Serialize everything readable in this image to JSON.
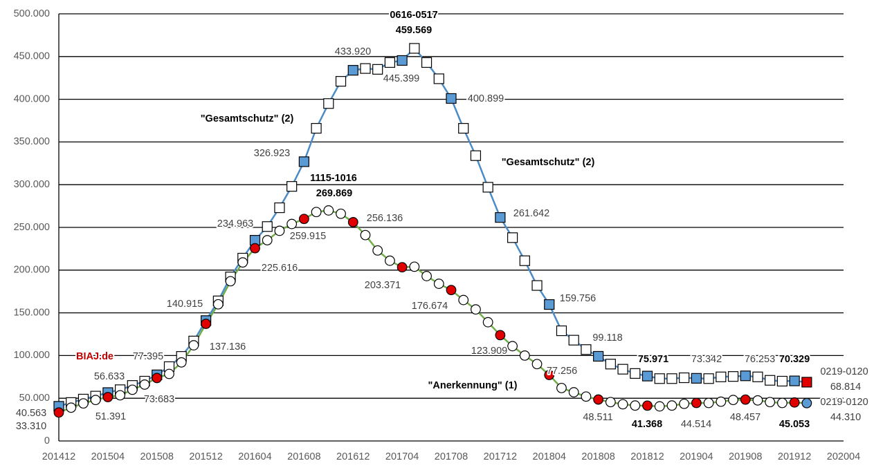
{
  "chart_data": {
    "type": "line",
    "categories": [
      "201412",
      null,
      null,
      null,
      "201504",
      null,
      null,
      null,
      "201508",
      null,
      null,
      null,
      "201512",
      null,
      null,
      null,
      "201604",
      null,
      null,
      null,
      "201608",
      null,
      null,
      null,
      "201612",
      null,
      null,
      null,
      "201704",
      null,
      null,
      null,
      "201708",
      null,
      null,
      null,
      "201712",
      null,
      null,
      null,
      "201804",
      null,
      null,
      null,
      "201808",
      null,
      null,
      null,
      "201812",
      null,
      null,
      null,
      "201904",
      null,
      null,
      null,
      "201908",
      null,
      null,
      null,
      "201912",
      null,
      null,
      null,
      "202004"
    ],
    "ylim": [
      0,
      500000
    ],
    "yticks": [
      0,
      {
        "value": 50000,
        "label": "50.000"
      },
      {
        "value": 100000,
        "label": "100.000"
      },
      {
        "value": 150000,
        "label": "150.000"
      },
      {
        "value": 200000,
        "label": "200.000"
      },
      {
        "value": 250000,
        "label": "250.000"
      },
      {
        "value": 300000,
        "label": "300.000"
      },
      {
        "value": 350000,
        "label": "350.000"
      },
      {
        "value": 400000,
        "label": "400.000"
      },
      {
        "value": 450000,
        "label": "450.000"
      },
      {
        "value": 500000,
        "label": "500.000"
      }
    ],
    "grid": true,
    "series": [
      {
        "name": "\"Gesamtschutz\" (2)",
        "color": "#4a8bc7",
        "marker": "square",
        "values": [
          40563,
          45000,
          49000,
          52500,
          56633,
          60000,
          65000,
          70000,
          77395,
          87000,
          99000,
          117000,
          140915,
          164000,
          192000,
          214000,
          234963,
          251000,
          273000,
          298000,
          326923,
          366000,
          395000,
          421000,
          433920,
          436000,
          435000,
          443000,
          445399,
          459569,
          443000,
          424000,
          400899,
          366000,
          334000,
          297000,
          261642,
          238000,
          211000,
          182000,
          159756,
          129000,
          118000,
          107000,
          99118,
          90000,
          84000,
          79000,
          75971,
          73000,
          73000,
          74000,
          73342,
          73000,
          75000,
          75500,
          76253,
          75000,
          71000,
          70000,
          70329,
          68814,
          null,
          null,
          null
        ],
        "value_labels": [
          "40.563",
          null,
          null,
          null,
          "56.633",
          null,
          null,
          null,
          "77.395",
          null,
          null,
          null,
          "140.915",
          null,
          null,
          null,
          "234.963",
          null,
          null,
          null,
          "326.923",
          null,
          null,
          null,
          "433.920",
          null,
          null,
          null,
          "445.399",
          "459.569",
          null,
          null,
          "400.899",
          null,
          null,
          null,
          "261.642",
          null,
          null,
          null,
          "159.756",
          null,
          null,
          null,
          "99.118",
          null,
          null,
          null,
          "75.971",
          null,
          null,
          null,
          "73.342",
          null,
          null,
          null,
          "76.253",
          null,
          null,
          null,
          "70.329",
          "68.814",
          null,
          null,
          null
        ],
        "point_colors": [
          "#5b9bd5",
          "#ffffff",
          "#ffffff",
          "#ffffff",
          "#5b9bd5",
          "#ffffff",
          "#ffffff",
          "#ffffff",
          "#5b9bd5",
          "#ffffff",
          "#ffffff",
          "#ffffff",
          "#5b9bd5",
          "#ffffff",
          "#ffffff",
          "#ffffff",
          "#5b9bd5",
          "#ffffff",
          "#ffffff",
          "#ffffff",
          "#5b9bd5",
          "#ffffff",
          "#ffffff",
          "#ffffff",
          "#5b9bd5",
          "#ffffff",
          "#ffffff",
          "#ffffff",
          "#5b9bd5",
          "#ffffff",
          "#ffffff",
          "#ffffff",
          "#5b9bd5",
          "#ffffff",
          "#ffffff",
          "#ffffff",
          "#5b9bd5",
          "#ffffff",
          "#ffffff",
          "#ffffff",
          "#5b9bd5",
          "#ffffff",
          "#ffffff",
          "#ffffff",
          "#5b9bd5",
          "#ffffff",
          "#ffffff",
          "#ffffff",
          "#5b9bd5",
          "#ffffff",
          "#ffffff",
          "#ffffff",
          "#5b9bd5",
          "#ffffff",
          "#ffffff",
          "#ffffff",
          "#5b9bd5",
          "#ffffff",
          "#ffffff",
          "#ffffff",
          "#5b9bd5",
          "#e00000",
          null,
          null,
          null
        ]
      },
      {
        "name": "\"Anerkennung\" (1)",
        "color": "#70ad47",
        "marker": "circle",
        "values": [
          33310,
          39000,
          44000,
          48000,
          51391,
          53500,
          60000,
          66000,
          73683,
          78500,
          92000,
          112000,
          137136,
          160000,
          187000,
          209000,
          225616,
          235000,
          246000,
          254000,
          259915,
          268000,
          269869,
          266000,
          256136,
          241000,
          223000,
          211000,
          203371,
          204000,
          193000,
          184000,
          176674,
          165000,
          154000,
          139000,
          123909,
          111000,
          100000,
          90000,
          77256,
          62000,
          57000,
          52000,
          48511,
          45500,
          43000,
          41500,
          41368,
          40500,
          41500,
          43500,
          44514,
          44500,
          46000,
          48000,
          48457,
          47500,
          45500,
          44500,
          45053,
          44310,
          null,
          null,
          null
        ],
        "value_labels": [
          "33.310",
          null,
          null,
          null,
          "51.391",
          null,
          null,
          null,
          "73.683",
          null,
          null,
          null,
          "137.136",
          null,
          null,
          null,
          "225.616",
          null,
          null,
          null,
          "259.915",
          null,
          "269.869",
          null,
          "256.136",
          null,
          null,
          null,
          "203.371",
          null,
          null,
          null,
          "176.674",
          null,
          null,
          null,
          "123.909",
          null,
          null,
          null,
          "77.256",
          null,
          null,
          null,
          "48.511",
          null,
          null,
          null,
          "41.368",
          null,
          null,
          null,
          "44.514",
          null,
          null,
          null,
          "48.457",
          null,
          null,
          null,
          "45.053",
          "44.310",
          null,
          null,
          null
        ],
        "point_colors": [
          "#e00000",
          "#ffffff",
          "#ffffff",
          "#ffffff",
          "#e00000",
          "#ffffff",
          "#ffffff",
          "#ffffff",
          "#e00000",
          "#ffffff",
          "#ffffff",
          "#ffffff",
          "#e00000",
          "#ffffff",
          "#ffffff",
          "#ffffff",
          "#e00000",
          "#ffffff",
          "#ffffff",
          "#ffffff",
          "#e00000",
          "#ffffff",
          "#ffffff",
          "#ffffff",
          "#e00000",
          "#ffffff",
          "#ffffff",
          "#ffffff",
          "#e00000",
          "#ffffff",
          "#ffffff",
          "#ffffff",
          "#e00000",
          "#ffffff",
          "#ffffff",
          "#ffffff",
          "#e00000",
          "#ffffff",
          "#ffffff",
          "#ffffff",
          "#e00000",
          "#ffffff",
          "#ffffff",
          "#ffffff",
          "#e00000",
          "#ffffff",
          "#ffffff",
          "#ffffff",
          "#e00000",
          "#ffffff",
          "#ffffff",
          "#ffffff",
          "#e00000",
          "#ffffff",
          "#ffffff",
          "#ffffff",
          "#e00000",
          "#ffffff",
          "#ffffff",
          "#ffffff",
          "#e00000",
          "#5b9bd5",
          null,
          null,
          null
        ]
      }
    ],
    "annotations": [
      "0616-0517",
      "1115-1016",
      "0219-0120",
      "0219-0120",
      "BIAJ.de"
    ]
  }
}
